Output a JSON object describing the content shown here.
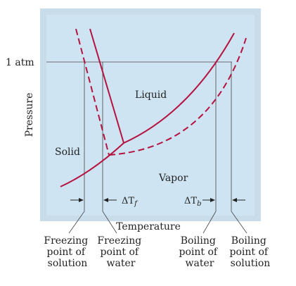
{
  "colors": {
    "frame": "#c8dcea",
    "plot_bg": "#cfe4f2",
    "curve": "#b5123f",
    "guide": "#444444",
    "text": "#222222"
  },
  "labels": {
    "pressure_axis": "Pressure",
    "temperature_axis": "Temperature",
    "one_atm": "1 atm",
    "liquid": "Liquid",
    "solid": "Solid",
    "vapor": "Vapor",
    "delta_tf_symbol": "ΔT",
    "delta_tf_subscript": "f",
    "delta_tb_symbol": "ΔT",
    "delta_tb_subscript": "b"
  },
  "annotations": [
    {
      "id": "fp-solution",
      "lines": [
        "Freezing",
        "point of",
        "solution"
      ]
    },
    {
      "id": "fp-water",
      "lines": [
        "Freezing",
        "point of",
        "water"
      ]
    },
    {
      "id": "bp-water",
      "lines": [
        "Boiling",
        "point of",
        "water"
      ]
    },
    {
      "id": "bp-solution",
      "lines": [
        "Boiling",
        "point of",
        "solution"
      ]
    }
  ]
}
